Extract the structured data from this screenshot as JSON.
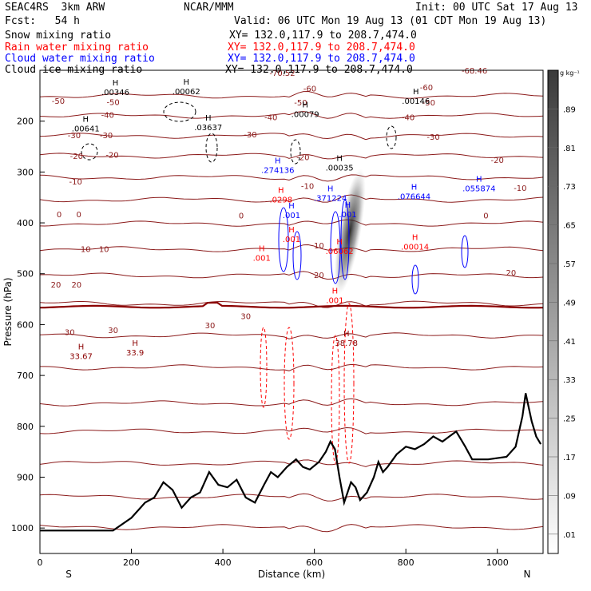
{
  "header": {
    "model": "SEAC4RS  3km ARW",
    "org": "NCAR/MMM",
    "init": "Init: 00 UTC Sat 17 Aug 13",
    "fcst": "Fcst:   54 h",
    "valid": "Valid: 06 UTC Mon 19 Aug 13 (01 CDT Mon 19 Aug 13)"
  },
  "fields": [
    {
      "label": "Snow mixing ratio",
      "xy": "XY= 132.0,117.9 to 208.7,474.0",
      "color": "#000000"
    },
    {
      "label": "Rain water mixing ratio",
      "xy": "XY= 132.0,117.9 to 208.7,474.0",
      "color": "#ff0000"
    },
    {
      "label": "Cloud water mixing ratio",
      "xy": "XY= 132.0,117.9 to 208.7,474.0",
      "color": "#0000ff"
    },
    {
      "label": "Cloud ice mixing ratio",
      "xy": "XY= 132.0,117.9 to 208.7,474.0",
      "color": "#000000"
    }
  ],
  "colorbar": {
    "unit": "g kg⁻¹",
    "ticks": [
      ".01",
      ".09",
      ".17",
      ".25",
      ".33",
      ".41",
      ".49",
      ".57",
      ".65",
      ".73",
      ".81",
      ".89"
    ]
  },
  "chart_data": {
    "type": "contour",
    "xlabel": "Distance (km)",
    "ylabel": "Pressure (hPa)",
    "xlim": [
      0,
      1100
    ],
    "ylim": [
      1050,
      100
    ],
    "x_ticks": [
      "0",
      "200",
      "400",
      "600",
      "800",
      "1000"
    ],
    "y_ticks": [
      "200",
      "300",
      "400",
      "500",
      "600",
      "700",
      "800",
      "900",
      "1000"
    ],
    "left_end": "S",
    "right_end": "N",
    "isotherms": [
      {
        "label": "-70.52",
        "x": 530,
        "y": 105
      },
      {
        "label": "-68.46",
        "x": 950,
        "y": 100
      },
      {
        "label": "-60",
        "x": 590,
        "y": 135
      },
      {
        "label": "-60",
        "x": 845,
        "y": 133
      },
      {
        "label": "-50",
        "x": 40,
        "y": 160
      },
      {
        "label": "-50",
        "x": 160,
        "y": 162
      },
      {
        "label": "-50",
        "x": 570,
        "y": 163
      },
      {
        "label": "-50",
        "x": 850,
        "y": 163
      },
      {
        "label": "-40",
        "x": 148,
        "y": 187
      },
      {
        "label": "-40",
        "x": 505,
        "y": 192
      },
      {
        "label": "-40",
        "x": 805,
        "y": 192
      },
      {
        "label": "-30",
        "x": 75,
        "y": 227
      },
      {
        "label": "-30",
        "x": 145,
        "y": 227
      },
      {
        "label": "-30",
        "x": 460,
        "y": 226
      },
      {
        "label": "-30",
        "x": 860,
        "y": 230
      },
      {
        "label": "-20",
        "x": 80,
        "y": 268
      },
      {
        "label": "-20",
        "x": 158,
        "y": 266
      },
      {
        "label": "-20",
        "x": 575,
        "y": 270
      },
      {
        "label": "-20",
        "x": 1000,
        "y": 276
      },
      {
        "label": "-10",
        "x": 78,
        "y": 318
      },
      {
        "label": "-10",
        "x": 585,
        "y": 327
      },
      {
        "label": "-10",
        "x": 1050,
        "y": 331
      },
      {
        "label": "0",
        "x": 42,
        "y": 383
      },
      {
        "label": "0",
        "x": 85,
        "y": 383
      },
      {
        "label": "0",
        "x": 440,
        "y": 385
      },
      {
        "label": "0",
        "x": 975,
        "y": 385
      },
      {
        "label": "10",
        "x": 100,
        "y": 451
      },
      {
        "label": "10",
        "x": 140,
        "y": 451
      },
      {
        "label": "10",
        "x": 610,
        "y": 444
      },
      {
        "label": "20",
        "x": 35,
        "y": 521
      },
      {
        "label": "20",
        "x": 80,
        "y": 521
      },
      {
        "label": "20",
        "x": 610,
        "y": 502
      },
      {
        "label": "20",
        "x": 1030,
        "y": 497
      },
      {
        "label": "30",
        "x": 450,
        "y": 583
      },
      {
        "label": "30",
        "x": 372,
        "y": 601
      },
      {
        "label": "30",
        "x": 65,
        "y": 614
      },
      {
        "label": "30",
        "x": 160,
        "y": 610
      }
    ],
    "maxima": [
      {
        "label": ".00346",
        "x": 165,
        "y": 141,
        "color": "#000000"
      },
      {
        "label": ".00062",
        "x": 320,
        "y": 139,
        "color": "#000000"
      },
      {
        "label": ".00146",
        "x": 822,
        "y": 158,
        "color": "#000000"
      },
      {
        "label": ".00079",
        "x": 580,
        "y": 184,
        "color": "#000000"
      },
      {
        "label": ".00641",
        "x": 100,
        "y": 212,
        "color": "#000000"
      },
      {
        "label": ".03637",
        "x": 368,
        "y": 210,
        "color": "#000000"
      },
      {
        "label": ".274136",
        "x": 520,
        "y": 294,
        "color": "#0000ff"
      },
      {
        "label": ".00035",
        "x": 655,
        "y": 289,
        "color": "#000000"
      },
      {
        "label": ".055874",
        "x": 960,
        "y": 330,
        "color": "#0000ff"
      },
      {
        "label": ".076644",
        "x": 818,
        "y": 346,
        "color": "#0000ff"
      },
      {
        "label": ".371224",
        "x": 635,
        "y": 349,
        "color": "#0000ff"
      },
      {
        "label": ".0298",
        "x": 527,
        "y": 352,
        "color": "#ff0000"
      },
      {
        "label": ".001",
        "x": 550,
        "y": 383,
        "color": "#0000ff"
      },
      {
        "label": ".001",
        "x": 673,
        "y": 381,
        "color": "#0000ff"
      },
      {
        "label": ".001",
        "x": 550,
        "y": 430,
        "color": "#ff0000"
      },
      {
        "label": ".06062",
        "x": 655,
        "y": 453,
        "color": "#ff0000"
      },
      {
        "label": ".00014",
        "x": 820,
        "y": 445,
        "color": "#ff0000"
      },
      {
        "label": ".001",
        "x": 485,
        "y": 467,
        "color": "#ff0000"
      },
      {
        "label": ".001",
        "x": 645,
        "y": 550,
        "color": "#ff0000"
      },
      {
        "label": "38.78",
        "x": 670,
        "y": 634,
        "color": "#8b0000"
      },
      {
        "label": "33.67",
        "x": 90,
        "y": 660,
        "color": "#8b0000"
      },
      {
        "label": "33.9",
        "x": 208,
        "y": 653,
        "color": "#8b0000"
      }
    ],
    "freezing_level_hpa": 565,
    "terrain": [
      [
        0,
        1005
      ],
      [
        160,
        1005
      ],
      [
        200,
        980
      ],
      [
        230,
        950
      ],
      [
        250,
        940
      ],
      [
        270,
        910
      ],
      [
        290,
        925
      ],
      [
        310,
        960
      ],
      [
        330,
        940
      ],
      [
        350,
        930
      ],
      [
        370,
        890
      ],
      [
        390,
        915
      ],
      [
        410,
        920
      ],
      [
        430,
        905
      ],
      [
        450,
        940
      ],
      [
        470,
        950
      ],
      [
        490,
        915
      ],
      [
        505,
        890
      ],
      [
        520,
        900
      ],
      [
        540,
        880
      ],
      [
        560,
        865
      ],
      [
        575,
        880
      ],
      [
        590,
        885
      ],
      [
        610,
        870
      ],
      [
        625,
        850
      ],
      [
        635,
        830
      ],
      [
        645,
        845
      ],
      [
        655,
        900
      ],
      [
        665,
        950
      ],
      [
        680,
        910
      ],
      [
        690,
        920
      ],
      [
        700,
        945
      ],
      [
        715,
        930
      ],
      [
        730,
        900
      ],
      [
        740,
        870
      ],
      [
        750,
        890
      ],
      [
        760,
        880
      ],
      [
        780,
        855
      ],
      [
        800,
        840
      ],
      [
        820,
        845
      ],
      [
        840,
        835
      ],
      [
        860,
        820
      ],
      [
        880,
        830
      ],
      [
        895,
        820
      ],
      [
        910,
        810
      ],
      [
        920,
        825
      ],
      [
        930,
        840
      ],
      [
        945,
        865
      ],
      [
        980,
        865
      ],
      [
        1020,
        860
      ],
      [
        1040,
        840
      ],
      [
        1055,
        780
      ],
      [
        1062,
        735
      ],
      [
        1075,
        790
      ],
      [
        1085,
        820
      ],
      [
        1095,
        835
      ]
    ]
  }
}
